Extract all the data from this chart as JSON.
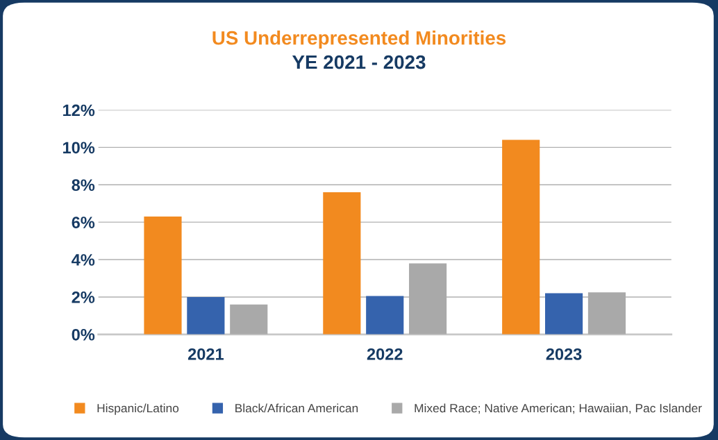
{
  "chart_data": {
    "type": "bar",
    "title": "US Underrepresented Minorities",
    "subtitle": "YE 2021 - 2023",
    "categories": [
      "2021",
      "2022",
      "2023"
    ],
    "series": [
      {
        "name": "Hispanic/Latino",
        "color": "#f28a1f",
        "values": [
          6.3,
          7.6,
          10.4
        ]
      },
      {
        "name": "Black/African American",
        "color": "#3563ad",
        "values": [
          2.0,
          2.05,
          2.2
        ]
      },
      {
        "name": "Mixed Race; Native American; Hawaiian, Pac Islander",
        "color": "#a9a9a9",
        "values": [
          1.6,
          3.8,
          2.25
        ]
      }
    ],
    "ylim": [
      0,
      12
    ],
    "yticks": [
      {
        "value": 0,
        "label": "0%"
      },
      {
        "value": 2,
        "label": "2%"
      },
      {
        "value": 4,
        "label": "4%"
      },
      {
        "value": 6,
        "label": "6%"
      },
      {
        "value": 8,
        "label": "8%"
      },
      {
        "value": 10,
        "label": "10%"
      },
      {
        "value": 12,
        "label": "12%"
      }
    ],
    "grid": "y",
    "legend": "bottom"
  }
}
